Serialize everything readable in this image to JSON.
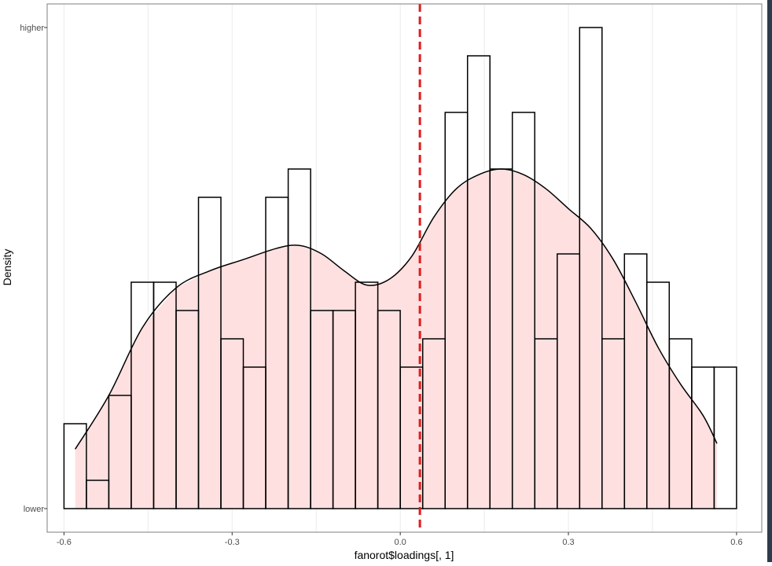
{
  "chart_data": {
    "type": "histogram",
    "xlabel": "fanorot$loadings[, 1]",
    "ylabel": "Density",
    "x_ticks": [
      -0.6,
      -0.3,
      0.0,
      0.3,
      0.6
    ],
    "x_tick_labels": [
      "-0.6",
      "-0.3",
      "0.0",
      "0.3",
      "0.6"
    ],
    "y_tick_labels": [
      "higher",
      "lower"
    ],
    "xlim": [
      -0.63,
      0.645
    ],
    "ylim": [
      0,
      17.8
    ],
    "bins": [
      {
        "x0": -0.6,
        "x1": -0.56,
        "count": 3
      },
      {
        "x0": -0.56,
        "x1": -0.52,
        "count": 1
      },
      {
        "x0": -0.52,
        "x1": -0.48,
        "count": 4
      },
      {
        "x0": -0.48,
        "x1": -0.44,
        "count": 8
      },
      {
        "x0": -0.44,
        "x1": -0.4,
        "count": 8
      },
      {
        "x0": -0.4,
        "x1": -0.36,
        "count": 7
      },
      {
        "x0": -0.36,
        "x1": -0.32,
        "count": 11
      },
      {
        "x0": -0.32,
        "x1": -0.28,
        "count": 6
      },
      {
        "x0": -0.28,
        "x1": -0.24,
        "count": 5
      },
      {
        "x0": -0.24,
        "x1": -0.2,
        "count": 11
      },
      {
        "x0": -0.2,
        "x1": -0.16,
        "count": 12
      },
      {
        "x0": -0.16,
        "x1": -0.12,
        "count": 7
      },
      {
        "x0": -0.12,
        "x1": -0.08,
        "count": 7
      },
      {
        "x0": -0.08,
        "x1": -0.04,
        "count": 8
      },
      {
        "x0": -0.04,
        "x1": 0.0,
        "count": 7
      },
      {
        "x0": 0.0,
        "x1": 0.04,
        "count": 5
      },
      {
        "x0": 0.04,
        "x1": 0.08,
        "count": 6
      },
      {
        "x0": 0.08,
        "x1": 0.12,
        "count": 14
      },
      {
        "x0": 0.12,
        "x1": 0.16,
        "count": 16
      },
      {
        "x0": 0.16,
        "x1": 0.2,
        "count": 12
      },
      {
        "x0": 0.2,
        "x1": 0.24,
        "count": 14
      },
      {
        "x0": 0.24,
        "x1": 0.28,
        "count": 6
      },
      {
        "x0": 0.28,
        "x1": 0.32,
        "count": 9
      },
      {
        "x0": 0.32,
        "x1": 0.36,
        "count": 17
      },
      {
        "x0": 0.36,
        "x1": 0.4,
        "count": 6
      },
      {
        "x0": 0.4,
        "x1": 0.44,
        "count": 9
      },
      {
        "x0": 0.44,
        "x1": 0.48,
        "count": 8
      },
      {
        "x0": 0.48,
        "x1": 0.52,
        "count": 6
      },
      {
        "x0": 0.52,
        "x1": 0.56,
        "count": 5
      },
      {
        "x0": 0.56,
        "x1": 0.6,
        "count": 5
      }
    ],
    "density_curve": [
      [
        -0.58,
        2.1
      ],
      [
        -0.52,
        4.0
      ],
      [
        -0.46,
        6.4
      ],
      [
        -0.4,
        7.8
      ],
      [
        -0.34,
        8.4
      ],
      [
        -0.28,
        8.8
      ],
      [
        -0.22,
        9.2
      ],
      [
        -0.18,
        9.3
      ],
      [
        -0.14,
        9.0
      ],
      [
        -0.1,
        8.4
      ],
      [
        -0.06,
        7.9
      ],
      [
        -0.02,
        8.1
      ],
      [
        0.02,
        8.9
      ],
      [
        0.06,
        10.3
      ],
      [
        0.1,
        11.3
      ],
      [
        0.14,
        11.8
      ],
      [
        0.18,
        12.0
      ],
      [
        0.22,
        11.8
      ],
      [
        0.26,
        11.3
      ],
      [
        0.3,
        10.6
      ],
      [
        0.34,
        9.9
      ],
      [
        0.38,
        8.8
      ],
      [
        0.42,
        7.3
      ],
      [
        0.46,
        5.7
      ],
      [
        0.5,
        4.4
      ],
      [
        0.54,
        3.3
      ],
      [
        0.565,
        2.3
      ]
    ],
    "vline_x": 0.035,
    "colors": {
      "fill": "#ffe0e0",
      "bar_stroke": "#000000",
      "vline": "#e41a1c",
      "grid": "#ebebeb",
      "panel_border": "#7f7f7f"
    }
  }
}
